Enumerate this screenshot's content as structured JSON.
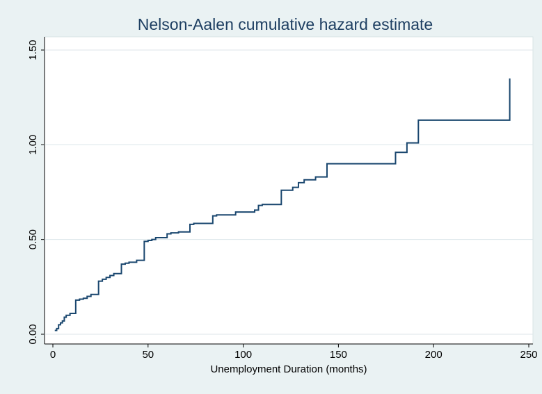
{
  "chart_data": {
    "type": "step",
    "title": "Nelson-Aalen cumulative hazard estimate",
    "x_label": "Unemployment Duration (months)",
    "x": [
      1,
      2,
      3,
      4,
      5,
      6,
      7,
      9,
      12,
      14,
      16,
      18,
      20,
      24,
      26,
      28,
      30,
      32,
      36,
      38,
      40,
      44,
      48,
      50,
      52,
      54,
      60,
      62,
      66,
      72,
      74,
      84,
      86,
      96,
      106,
      108,
      110,
      120,
      126,
      129,
      132,
      138,
      144,
      180,
      186,
      192,
      240
    ],
    "values": [
      0.02,
      0.03,
      0.05,
      0.06,
      0.07,
      0.09,
      0.1,
      0.11,
      0.18,
      0.185,
      0.19,
      0.2,
      0.21,
      0.28,
      0.29,
      0.3,
      0.31,
      0.32,
      0.37,
      0.375,
      0.38,
      0.39,
      0.49,
      0.495,
      0.5,
      0.51,
      0.53,
      0.535,
      0.54,
      0.58,
      0.585,
      0.625,
      0.63,
      0.645,
      0.655,
      0.68,
      0.685,
      0.76,
      0.775,
      0.8,
      0.815,
      0.83,
      0.9,
      0.96,
      1.01,
      1.13,
      1.35
    ],
    "color": "#1a476f",
    "xlim": [
      0,
      250
    ],
    "xticks": [
      0,
      50,
      100,
      150,
      200,
      250
    ],
    "ylim": [
      0,
      1.5
    ],
    "yticks": [
      {
        "value": 0,
        "label": "0.00"
      },
      {
        "value": 0.5,
        "label": "0.50"
      },
      {
        "value": 1,
        "label": "1.00"
      },
      {
        "value": 1.5,
        "label": "1.50"
      }
    ],
    "grid": true
  }
}
